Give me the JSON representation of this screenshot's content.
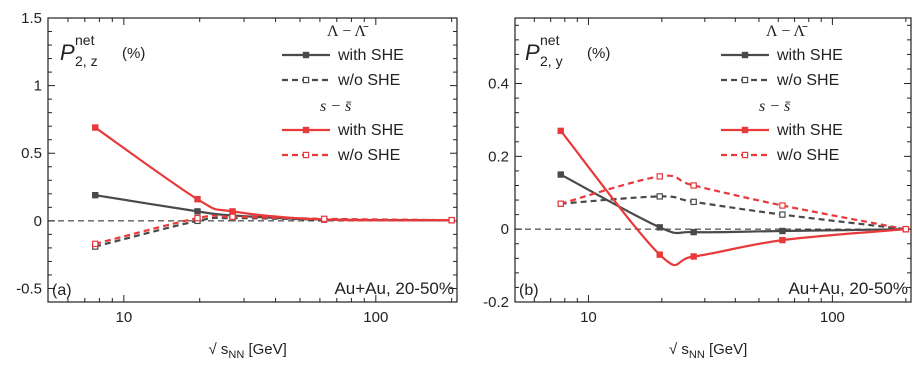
{
  "colors": {
    "gray": "#4a4a4a",
    "red": "#e8393b",
    "axis": "#222222"
  },
  "chart_data": [
    {
      "type": "line",
      "panel_label": "(a)",
      "title_main": "P",
      "title_sup": "net",
      "title_sub": "2, z",
      "title_unit": "(%)",
      "annotation": "Au+Au, 20-50%",
      "xlabel": "√ s",
      "xlabel_sub": "NN",
      "xlabel_unit": "[GeV]",
      "xscale": "log",
      "xlim": [
        5,
        210
      ],
      "ylim": [
        -0.6,
        1.5
      ],
      "xticks": [
        10,
        100
      ],
      "yticks": [
        -0.5,
        0,
        0.5,
        1,
        1.5
      ],
      "ytick_labels": [
        "-0.5",
        "0",
        "0.5",
        "1",
        "1.5"
      ],
      "zero_line": true,
      "legend": [
        {
          "type": "header",
          "text": "Λ − Λ̄"
        },
        {
          "type": "entry",
          "label": "with SHE",
          "series": "lambda_with"
        },
        {
          "type": "entry",
          "label": "w/o  SHE",
          "series": "lambda_wo"
        },
        {
          "type": "header",
          "text": "s − s̄"
        },
        {
          "type": "entry",
          "label": "with SHE",
          "series": "s_with"
        },
        {
          "type": "entry",
          "label": "w/o  SHE",
          "series": "s_wo"
        }
      ],
      "series": [
        {
          "id": "lambda_with",
          "color": "gray",
          "dash": false,
          "marker": "filled",
          "x": [
            7.7,
            19.6,
            27,
            62.4,
            200
          ],
          "y": [
            0.19,
            0.07,
            0.04,
            0.01,
            0.005
          ]
        },
        {
          "id": "lambda_wo",
          "color": "gray",
          "dash": true,
          "marker": "open",
          "x": [
            7.7,
            19.6,
            27,
            62.4,
            200
          ],
          "y": [
            -0.19,
            0.0,
            0.02,
            0.01,
            0.005
          ]
        },
        {
          "id": "s_with",
          "color": "red",
          "dash": false,
          "marker": "filled",
          "x": [
            7.7,
            19.6,
            27,
            62.4,
            200
          ],
          "y": [
            0.69,
            0.16,
            0.07,
            0.01,
            0.005
          ]
        },
        {
          "id": "s_wo",
          "color": "red",
          "dash": true,
          "marker": "open",
          "x": [
            7.7,
            19.6,
            27,
            62.4,
            200
          ],
          "y": [
            -0.17,
            0.02,
            0.03,
            0.015,
            0.005
          ]
        }
      ]
    },
    {
      "type": "line",
      "panel_label": "(b)",
      "title_main": "P",
      "title_sup": "net",
      "title_sub": "2, y",
      "title_unit": "(%)",
      "annotation": "Au+Au, 20-50%",
      "xlabel": "√ s",
      "xlabel_sub": "NN",
      "xlabel_unit": "[GeV]",
      "xscale": "log",
      "xlim": [
        5,
        210
      ],
      "ylim": [
        -0.2,
        0.58
      ],
      "xticks": [
        10,
        100
      ],
      "yticks": [
        -0.2,
        0,
        0.2,
        0.4
      ],
      "ytick_labels": [
        "-0.2",
        "0",
        "0.2",
        "0.4"
      ],
      "zero_line": true,
      "legend": [
        {
          "type": "header",
          "text": "Λ − Λ̄"
        },
        {
          "type": "entry",
          "label": "with SHE",
          "series": "lambda_with"
        },
        {
          "type": "entry",
          "label": "w/o  SHE",
          "series": "lambda_wo"
        },
        {
          "type": "header",
          "text": "s − s̄"
        },
        {
          "type": "entry",
          "label": "with SHE",
          "series": "s_with"
        },
        {
          "type": "entry",
          "label": "w/o  SHE",
          "series": "s_wo"
        }
      ],
      "series": [
        {
          "id": "lambda_with",
          "color": "gray",
          "dash": false,
          "marker": "filled",
          "x": [
            7.7,
            19.6,
            27,
            62.4,
            200
          ],
          "y": [
            0.15,
            0.005,
            -0.008,
            -0.005,
            0.0
          ]
        },
        {
          "id": "lambda_wo",
          "color": "gray",
          "dash": true,
          "marker": "open",
          "x": [
            7.7,
            19.6,
            27,
            62.4,
            200
          ],
          "y": [
            0.07,
            0.09,
            0.075,
            0.04,
            0.0
          ]
        },
        {
          "id": "s_with",
          "color": "red",
          "dash": false,
          "marker": "filled",
          "x": [
            7.7,
            19.6,
            27,
            62.4,
            200
          ],
          "y": [
            0.27,
            -0.07,
            -0.075,
            -0.03,
            0.0
          ]
        },
        {
          "id": "s_wo",
          "color": "red",
          "dash": true,
          "marker": "open",
          "x": [
            7.7,
            19.6,
            27,
            62.4,
            200
          ],
          "y": [
            0.07,
            0.145,
            0.12,
            0.065,
            0.0
          ]
        }
      ]
    }
  ]
}
